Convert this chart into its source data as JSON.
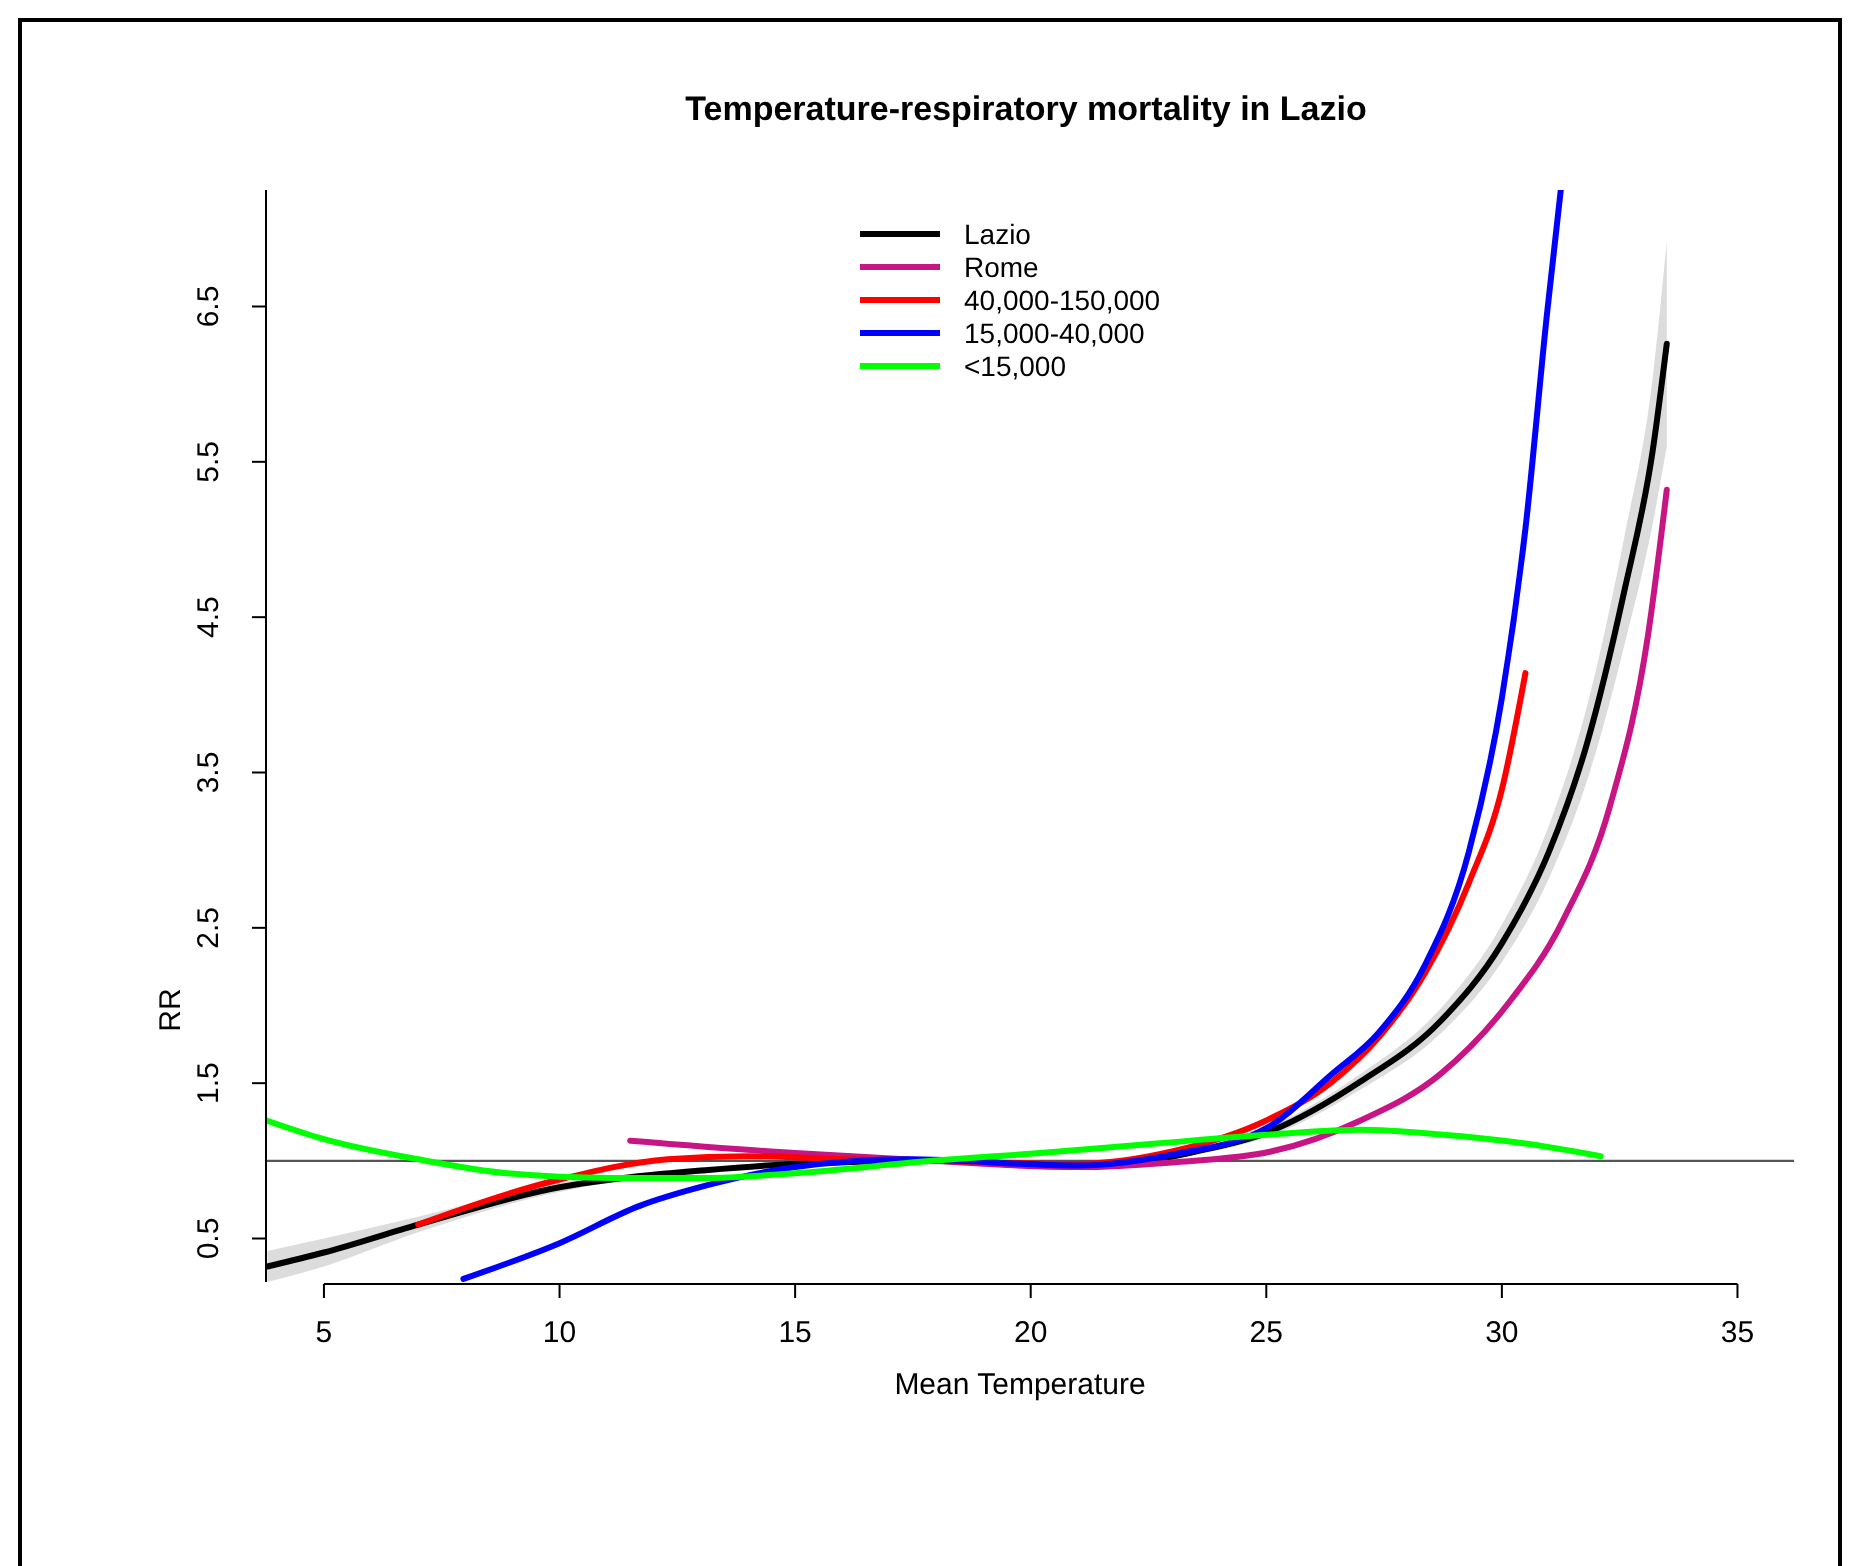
{
  "chart_data": {
    "type": "line",
    "title": "Temperature-respiratory mortality in Lazio",
    "xlabel": "Mean Temperature",
    "ylabel": "RR",
    "xlim": [
      3.77,
      36.2
    ],
    "ylim": [
      0.22,
      7.25
    ],
    "xticks": [
      5,
      10,
      15,
      20,
      25,
      30,
      35
    ],
    "yticks": [
      0.5,
      1.5,
      2.5,
      3.5,
      4.5,
      5.5,
      6.5
    ],
    "legend": "top",
    "line_style": "solid",
    "marker": "none",
    "grid": false,
    "ref_lines": [
      {
        "axis": "y",
        "value": 1,
        "color": "#555555"
      }
    ],
    "series": [
      {
        "name": "Lazio",
        "color": "#000000",
        "x": [
          3.8,
          5,
          7,
          10,
          11.1,
          13.1,
          15,
          18,
          20.2,
          22,
          23.5,
          25,
          27,
          28.7,
          30,
          31,
          31.8,
          32.6,
          33.2,
          33.5
        ],
        "values": [
          0.32,
          0.41,
          0.59,
          0.83,
          0.88,
          0.94,
          0.98,
          1.0,
          0.97,
          0.98,
          1.06,
          1.18,
          1.51,
          1.9,
          2.4,
          2.99,
          3.68,
          4.67,
          5.57,
          6.26
        ],
        "lower": [
          0.22,
          0.32,
          0.54,
          0.8,
          0.86,
          0.92,
          0.97,
          1.0,
          0.96,
          0.97,
          1.04,
          1.15,
          1.46,
          1.82,
          2.28,
          2.82,
          3.44,
          4.32,
          5.1,
          5.6
        ],
        "upper": [
          0.42,
          0.5,
          0.64,
          0.86,
          0.9,
          0.96,
          0.99,
          1.0,
          0.98,
          0.99,
          1.08,
          1.21,
          1.56,
          1.98,
          2.52,
          3.16,
          3.92,
          5.02,
          6.04,
          6.92
        ]
      },
      {
        "name": "Rome",
        "color": "#c71585",
        "x": [
          11.5,
          15,
          17.35,
          21,
          23,
          25.1,
          27,
          28.7,
          30.1,
          31.3,
          32.3,
          33.1,
          33.5
        ],
        "values": [
          1.13,
          1.05,
          1.01,
          0.96,
          0.99,
          1.06,
          1.26,
          1.56,
          2.0,
          2.55,
          3.29,
          4.38,
          5.32
        ]
      },
      {
        "name": "40,000-150,000",
        "color": "#ff0000",
        "x": [
          7,
          10,
          12.3,
          14,
          16,
          17.9,
          21,
          23,
          25,
          26.4,
          27.4,
          28.35,
          29.3,
          30,
          30.5
        ],
        "values": [
          0.59,
          0.88,
          1.01,
          1.03,
          1.01,
          1.0,
          0.98,
          1.06,
          1.26,
          1.51,
          1.8,
          2.2,
          2.79,
          3.39,
          4.14
        ]
      },
      {
        "name": "15,000-40,000",
        "color": "#0000ff",
        "x": [
          7.96,
          10,
          11.7,
          13.1,
          15,
          17.4,
          21,
          23,
          25,
          26.4,
          27.4,
          28.35,
          29.3,
          30,
          30.5,
          30.96,
          31.25
        ],
        "values": [
          0.24,
          0.47,
          0.71,
          0.84,
          0.96,
          1.01,
          0.97,
          1.04,
          1.21,
          1.56,
          1.83,
          2.25,
          2.99,
          3.98,
          5.07,
          6.46,
          7.25
        ]
      },
      {
        "name": "<15,000",
        "color": "#00ff00",
        "x": [
          3.78,
          5,
          7,
          8.9,
          11.1,
          13.1,
          15,
          17.9,
          20.2,
          22.6,
          25.1,
          27,
          28.7,
          30.3,
          32.1
        ],
        "values": [
          1.26,
          1.14,
          1.01,
          0.92,
          0.89,
          0.89,
          0.92,
          1.0,
          1.05,
          1.11,
          1.17,
          1.2,
          1.17,
          1.12,
          1.03
        ]
      }
    ]
  }
}
